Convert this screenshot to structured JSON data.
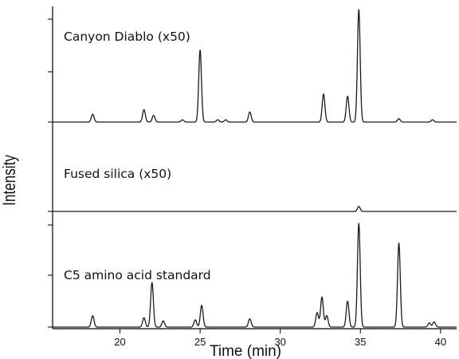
{
  "chart_data": {
    "type": "line",
    "xlabel": "Time (min)",
    "ylabel": "Intensity",
    "x_ticks": [
      20,
      25,
      30,
      35,
      40
    ],
    "xlim": [
      15.8,
      41
    ],
    "panels": [
      {
        "name": "Canyon Diablo (x50)",
        "peaks": [
          {
            "x": 18.3,
            "y": 0.07
          },
          {
            "x": 21.5,
            "y": 0.11
          },
          {
            "x": 22.1,
            "y": 0.06
          },
          {
            "x": 23.9,
            "y": 0.02
          },
          {
            "x": 25.0,
            "y": 0.64
          },
          {
            "x": 26.1,
            "y": 0.02
          },
          {
            "x": 26.6,
            "y": 0.02
          },
          {
            "x": 28.1,
            "y": 0.09
          },
          {
            "x": 32.7,
            "y": 0.25
          },
          {
            "x": 34.2,
            "y": 0.23
          },
          {
            "x": 34.9,
            "y": 1.0
          },
          {
            "x": 37.4,
            "y": 0.03
          },
          {
            "x": 39.5,
            "y": 0.02
          }
        ]
      },
      {
        "name": "Fused silica (x50)",
        "peaks": [
          {
            "x": 34.9,
            "y": 0.06
          }
        ]
      },
      {
        "name": "C5 amino acid standard",
        "peaks": [
          {
            "x": 18.3,
            "y": 0.11
          },
          {
            "x": 21.5,
            "y": 0.09
          },
          {
            "x": 22.0,
            "y": 0.43
          },
          {
            "x": 22.7,
            "y": 0.06
          },
          {
            "x": 24.7,
            "y": 0.07
          },
          {
            "x": 25.1,
            "y": 0.21
          },
          {
            "x": 28.1,
            "y": 0.08
          },
          {
            "x": 32.3,
            "y": 0.14
          },
          {
            "x": 32.6,
            "y": 0.29
          },
          {
            "x": 32.9,
            "y": 0.11
          },
          {
            "x": 34.2,
            "y": 0.25
          },
          {
            "x": 34.9,
            "y": 1.0
          },
          {
            "x": 37.4,
            "y": 0.81
          },
          {
            "x": 39.3,
            "y": 0.04
          },
          {
            "x": 39.6,
            "y": 0.05
          }
        ]
      }
    ]
  }
}
